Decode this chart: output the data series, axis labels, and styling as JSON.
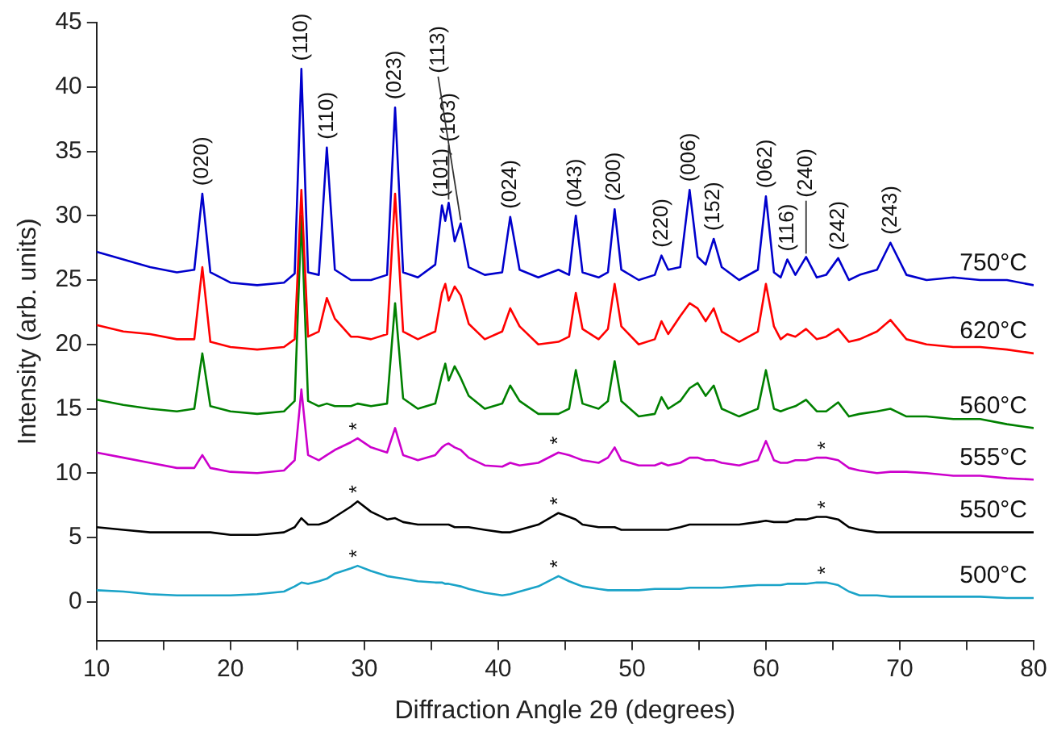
{
  "chart_data": {
    "type": "line",
    "xlabel": "Diffraction Angle 2θ (degrees)",
    "ylabel": "Intensity (arb. units)",
    "x": [
      10,
      12,
      14,
      16,
      17.3,
      17.9,
      18.5,
      20,
      22,
      24,
      24.8,
      25.3,
      25.8,
      26.6,
      27.2,
      27.8,
      29,
      29.5,
      30.5,
      31.7,
      32.3,
      32.9,
      34,
      35.3,
      35.8,
      36.05,
      36.3,
      36.75,
      37.2,
      37.8,
      39,
      40.3,
      40.9,
      41.6,
      43,
      44.5,
      45.3,
      45.8,
      46.3,
      47.5,
      48.2,
      48.7,
      49.2,
      50.5,
      51.7,
      52.2,
      52.7,
      53.6,
      54.3,
      54.9,
      55.5,
      56.1,
      56.7,
      58,
      59.4,
      60.0,
      60.6,
      61.1,
      61.6,
      62.2,
      63.0,
      63.8,
      64.5,
      65.4,
      66.2,
      67,
      68.3,
      69.3,
      70.5,
      72,
      74,
      76,
      78,
      80
    ],
    "series": [
      {
        "name": "750°C",
        "color": "#0000cc",
        "values": [
          27.2,
          26.6,
          26.0,
          25.6,
          25.8,
          31.7,
          25.6,
          24.8,
          24.6,
          24.8,
          25.5,
          41.4,
          25.6,
          25.4,
          35.3,
          25.8,
          25.0,
          25.0,
          25.0,
          25.4,
          38.4,
          25.6,
          25.2,
          26.2,
          30.8,
          29.6,
          31.0,
          28.0,
          29.4,
          26.0,
          25.4,
          25.6,
          29.9,
          25.8,
          25.2,
          25.8,
          25.4,
          30.0,
          25.6,
          25.2,
          25.6,
          30.5,
          25.8,
          25.0,
          25.4,
          26.9,
          25.8,
          26.0,
          32.0,
          26.8,
          26.2,
          28.2,
          26.0,
          25.0,
          25.8,
          31.5,
          25.6,
          25.2,
          26.6,
          25.4,
          26.8,
          25.2,
          25.4,
          26.7,
          25.0,
          25.4,
          25.8,
          27.9,
          25.4,
          25.0,
          25.2,
          25.0,
          25.0,
          24.6
        ]
      },
      {
        "name": "620°C",
        "color": "#ff0000",
        "values": [
          21.5,
          21.0,
          20.8,
          20.4,
          20.4,
          26.0,
          20.2,
          19.8,
          19.6,
          19.8,
          20.4,
          32.0,
          20.6,
          21.0,
          23.6,
          22.0,
          20.6,
          20.6,
          20.4,
          20.8,
          31.7,
          21.0,
          20.4,
          21.0,
          24.0,
          24.7,
          23.4,
          24.5,
          23.8,
          21.6,
          20.4,
          21.0,
          22.8,
          21.4,
          20.0,
          20.2,
          20.6,
          24.0,
          21.2,
          20.4,
          21.2,
          24.7,
          21.4,
          20.0,
          20.4,
          21.8,
          20.8,
          22.2,
          23.2,
          22.8,
          21.8,
          22.8,
          21.0,
          20.2,
          21.0,
          24.7,
          21.4,
          20.4,
          20.8,
          20.6,
          21.2,
          20.4,
          20.6,
          21.2,
          20.2,
          20.4,
          21.0,
          21.9,
          20.4,
          20.0,
          19.8,
          19.8,
          19.6,
          19.3
        ]
      },
      {
        "name": "560°C",
        "color": "#008000",
        "values": [
          15.7,
          15.3,
          15.0,
          14.8,
          15.0,
          19.3,
          15.2,
          14.8,
          14.6,
          14.8,
          15.6,
          30.0,
          15.6,
          15.2,
          15.4,
          15.2,
          15.2,
          15.4,
          15.2,
          15.4,
          23.2,
          15.8,
          15.0,
          15.4,
          17.6,
          18.5,
          17.2,
          18.3,
          17.4,
          16.0,
          15.0,
          15.4,
          16.8,
          15.6,
          14.6,
          14.6,
          15.0,
          18.0,
          15.4,
          15.0,
          15.6,
          18.7,
          15.6,
          14.4,
          14.6,
          15.9,
          15.0,
          15.6,
          16.6,
          17.0,
          16.0,
          16.8,
          15.0,
          14.4,
          15.0,
          18.0,
          15.0,
          14.8,
          15.0,
          15.2,
          15.7,
          14.8,
          14.8,
          15.5,
          14.4,
          14.6,
          14.8,
          15.0,
          14.4,
          14.4,
          14.2,
          14.2,
          13.8,
          13.5
        ]
      },
      {
        "name": "555°C",
        "color": "#cc00cc",
        "values": [
          11.6,
          11.2,
          10.8,
          10.4,
          10.4,
          11.4,
          10.4,
          10.1,
          10.0,
          10.2,
          11.0,
          16.5,
          11.4,
          11.0,
          11.4,
          11.8,
          12.4,
          12.7,
          12.0,
          11.6,
          13.5,
          11.4,
          11.0,
          11.4,
          12.0,
          12.2,
          12.3,
          12.0,
          11.8,
          11.2,
          10.6,
          10.5,
          10.8,
          10.6,
          10.8,
          11.6,
          11.4,
          11.2,
          11.0,
          10.8,
          11.2,
          12.0,
          11.0,
          10.6,
          10.6,
          10.8,
          10.6,
          10.8,
          11.2,
          11.2,
          11.0,
          11.0,
          10.8,
          10.6,
          11.0,
          12.5,
          11.0,
          10.8,
          10.8,
          11.0,
          11.0,
          11.2,
          11.2,
          11.0,
          10.4,
          10.2,
          10.0,
          10.1,
          10.1,
          10.0,
          9.8,
          9.8,
          9.6,
          9.5
        ]
      },
      {
        "name": "550°C",
        "color": "#000000",
        "values": [
          5.8,
          5.6,
          5.4,
          5.4,
          5.4,
          5.4,
          5.4,
          5.2,
          5.2,
          5.4,
          5.8,
          6.5,
          6.0,
          6.0,
          6.2,
          6.6,
          7.4,
          7.8,
          7.0,
          6.4,
          6.5,
          6.2,
          6.0,
          6.0,
          6.0,
          6.0,
          6.0,
          5.8,
          5.8,
          5.8,
          5.6,
          5.4,
          5.4,
          5.6,
          6.0,
          6.9,
          6.6,
          6.4,
          6.0,
          5.8,
          5.8,
          5.8,
          5.6,
          5.6,
          5.6,
          5.6,
          5.6,
          5.8,
          6.0,
          6.0,
          6.0,
          6.0,
          6.0,
          6.0,
          6.2,
          6.3,
          6.2,
          6.2,
          6.2,
          6.4,
          6.4,
          6.6,
          6.6,
          6.4,
          5.8,
          5.6,
          5.4,
          5.4,
          5.4,
          5.4,
          5.4,
          5.4,
          5.4,
          5.4
        ]
      },
      {
        "name": "500°C",
        "color": "#1aa3c8",
        "values": [
          0.9,
          0.8,
          0.6,
          0.5,
          0.5,
          0.5,
          0.5,
          0.5,
          0.6,
          0.8,
          1.2,
          1.5,
          1.4,
          1.6,
          1.8,
          2.2,
          2.6,
          2.8,
          2.4,
          2.0,
          1.9,
          1.8,
          1.6,
          1.5,
          1.5,
          1.4,
          1.4,
          1.3,
          1.2,
          1.0,
          0.7,
          0.5,
          0.6,
          0.8,
          1.2,
          2.0,
          1.6,
          1.4,
          1.2,
          1.0,
          0.9,
          0.9,
          0.9,
          0.9,
          1.0,
          1.0,
          1.0,
          1.0,
          1.1,
          1.1,
          1.1,
          1.1,
          1.1,
          1.2,
          1.3,
          1.3,
          1.3,
          1.3,
          1.4,
          1.4,
          1.4,
          1.5,
          1.5,
          1.3,
          0.8,
          0.5,
          0.5,
          0.4,
          0.4,
          0.4,
          0.4,
          0.4,
          0.3,
          0.3
        ]
      }
    ],
    "annotations": [
      {
        "text": "(020)",
        "x": 17.9,
        "y": 31.7
      },
      {
        "text": "(110)",
        "x": 25.3,
        "y": 41.4
      },
      {
        "text": "(110)",
        "x": 27.2,
        "y": 35.3
      },
      {
        "text": "(023)",
        "x": 32.3,
        "y": 38.4
      },
      {
        "text": "(101)",
        "x": 35.8,
        "y": 30.8
      },
      {
        "text": "(103)",
        "x": 36.3,
        "y": 31.0
      },
      {
        "text": "(113)",
        "x": 37.2,
        "y": 29.4
      },
      {
        "text": "(024)",
        "x": 40.9,
        "y": 29.9
      },
      {
        "text": "(043)",
        "x": 45.8,
        "y": 30.0
      },
      {
        "text": "(200)",
        "x": 48.7,
        "y": 30.5
      },
      {
        "text": "(220)",
        "x": 52.2,
        "y": 26.9
      },
      {
        "text": "(006)",
        "x": 54.3,
        "y": 32.0
      },
      {
        "text": "(152)",
        "x": 56.1,
        "y": 28.2
      },
      {
        "text": "(062)",
        "x": 60.0,
        "y": 31.5
      },
      {
        "text": "(116)",
        "x": 61.6,
        "y": 26.6
      },
      {
        "text": "(240)",
        "x": 63.0,
        "y": 26.8
      },
      {
        "text": "(242)",
        "x": 65.4,
        "y": 26.7
      },
      {
        "text": "(243)",
        "x": 69.3,
        "y": 27.9
      },
      {
        "text": "*",
        "x": 29.5,
        "y": 12.7
      },
      {
        "text": "*",
        "x": 29.5,
        "y": 7.8
      },
      {
        "text": "*",
        "x": 29.5,
        "y": 2.8
      },
      {
        "text": "*",
        "x": 44.5,
        "y": 11.6
      },
      {
        "text": "*",
        "x": 44.5,
        "y": 6.9
      },
      {
        "text": "*",
        "x": 44.5,
        "y": 2.0
      },
      {
        "text": "*",
        "x": 64.5,
        "y": 11.2
      },
      {
        "text": "*",
        "x": 64.5,
        "y": 6.6
      },
      {
        "text": "*",
        "x": 64.5,
        "y": 1.5
      }
    ],
    "xlim": [
      10,
      80
    ],
    "xticks": [
      10,
      {
        "value": 15,
        "label": null
      },
      20,
      {
        "value": 25,
        "label": null
      },
      30,
      {
        "value": 35,
        "label": null
      },
      40,
      {
        "value": 45,
        "label": null
      },
      50,
      {
        "value": 55,
        "label": null
      },
      60,
      {
        "value": 65,
        "label": null
      },
      70,
      {
        "value": 75,
        "label": null
      },
      80
    ],
    "ylim": [
      -3,
      45
    ],
    "yticks": [
      0,
      5,
      10,
      15,
      20,
      25,
      30,
      35,
      40,
      45
    ],
    "grid": false,
    "legend": false,
    "marker": "none",
    "line_style": "solid"
  }
}
